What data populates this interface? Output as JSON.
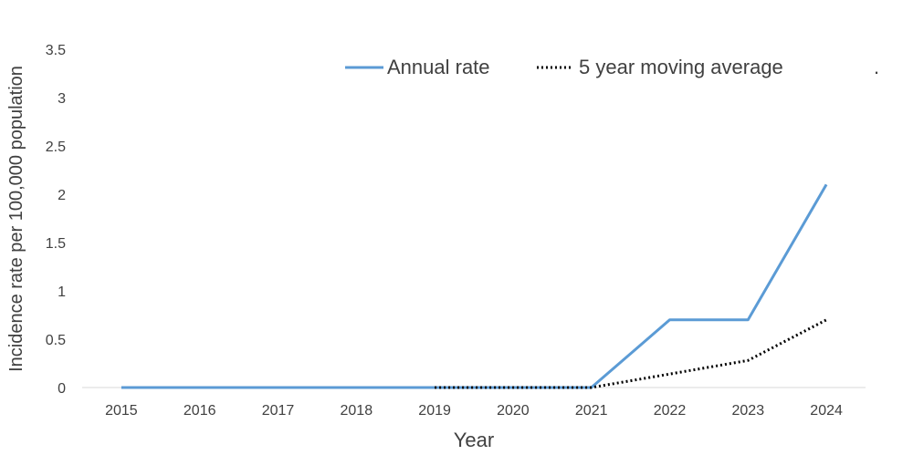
{
  "chart_data": {
    "type": "line",
    "x": [
      "2015",
      "2016",
      "2017",
      "2018",
      "2019",
      "2020",
      "2021",
      "2022",
      "2023",
      "2024"
    ],
    "series": [
      {
        "name": "Annual rate",
        "values": [
          0,
          0,
          0,
          0,
          0,
          0,
          0,
          0.7,
          0.7,
          2.1
        ],
        "color": "#5b9bd5",
        "style": "solid"
      },
      {
        "name": "5 year moving average",
        "values": [
          null,
          null,
          null,
          null,
          0,
          0,
          0,
          0.14,
          0.28,
          0.7
        ],
        "color": "#000000",
        "style": "dotted"
      }
    ],
    "xlabel": "Year",
    "ylabel": "Incidence rate per 100,000 population",
    "ylim": [
      0,
      3.5
    ],
    "yticks": [
      "0",
      "0.5",
      "1",
      "1.5",
      "2",
      "2.5",
      "3",
      "3.5"
    ],
    "grid": false,
    "legend_position": "top",
    "legend_trailing_mark": "."
  }
}
